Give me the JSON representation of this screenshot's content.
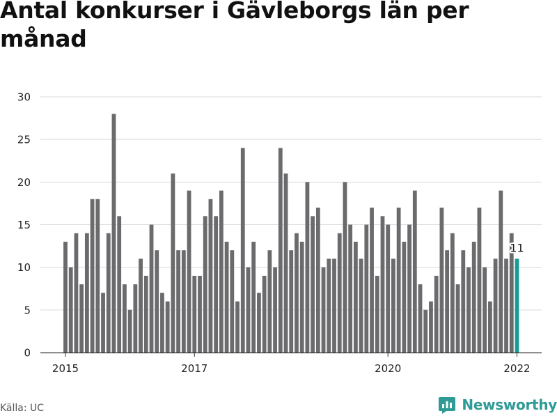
{
  "title": "Antal konkurser i Gävleborgs län per månad",
  "source": "Källa: UC",
  "brand": {
    "name": "Newsworthy",
    "icon": "newsworthy-logo-icon"
  },
  "colors": {
    "bar": "#6b6b6e",
    "highlight": "#199c94",
    "grid": "#d9d9d9",
    "axis": "#333333",
    "brand": "#2f9a96"
  },
  "chart_data": {
    "type": "bar",
    "title": "Antal konkurser i Gävleborgs län per månad",
    "xlabel": "",
    "ylabel": "",
    "ylim": [
      0,
      30
    ],
    "yticks": [
      "0",
      "5",
      "10",
      "15",
      "20",
      "25",
      "30"
    ],
    "xticks": [
      "2015",
      "2017",
      "2020",
      "2022"
    ],
    "grid": true,
    "start_month": "2015-01",
    "highlight_label": "11",
    "values": [
      13,
      10,
      14,
      8,
      14,
      18,
      18,
      7,
      14,
      28,
      16,
      8,
      5,
      8,
      11,
      9,
      15,
      12,
      7,
      6,
      21,
      12,
      12,
      19,
      9,
      9,
      16,
      18,
      16,
      19,
      13,
      12,
      6,
      24,
      10,
      13,
      7,
      9,
      12,
      10,
      24,
      21,
      12,
      14,
      13,
      20,
      16,
      17,
      10,
      11,
      11,
      14,
      20,
      15,
      13,
      11,
      15,
      17,
      9,
      16,
      15,
      11,
      17,
      13,
      15,
      19,
      8,
      5,
      6,
      9,
      17,
      12,
      14,
      8,
      12,
      10,
      13,
      17,
      10,
      6,
      11,
      19,
      11,
      14,
      11
    ]
  }
}
